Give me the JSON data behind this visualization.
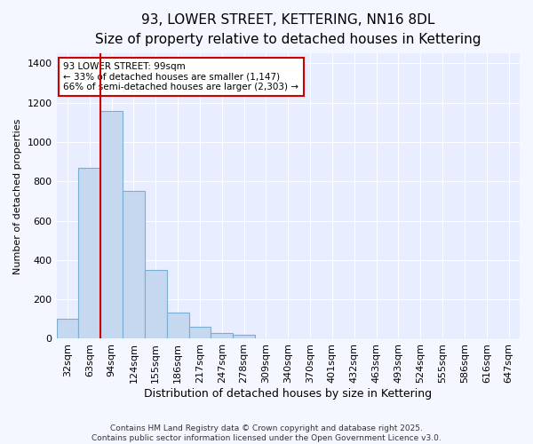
{
  "title": "93, LOWER STREET, KETTERING, NN16 8DL",
  "subtitle": "Size of property relative to detached houses in Kettering",
  "xlabel": "Distribution of detached houses by size in Kettering",
  "ylabel": "Number of detached properties",
  "categories": [
    "32sqm",
    "63sqm",
    "94sqm",
    "124sqm",
    "155sqm",
    "186sqm",
    "217sqm",
    "247sqm",
    "278sqm",
    "309sqm",
    "340sqm",
    "370sqm",
    "401sqm",
    "432sqm",
    "463sqm",
    "493sqm",
    "524sqm",
    "555sqm",
    "586sqm",
    "616sqm",
    "647sqm"
  ],
  "values": [
    100,
    870,
    1160,
    750,
    350,
    135,
    60,
    30,
    18,
    0,
    0,
    0,
    0,
    0,
    0,
    0,
    0,
    0,
    0,
    0,
    0
  ],
  "bar_color": "#c5d8f0",
  "bar_edgecolor": "#7aadd4",
  "bar_linewidth": 0.8,
  "vline_color": "#cc0000",
  "annotation_text": "93 LOWER STREET: 99sqm\n← 33% of detached houses are smaller (1,147)\n66% of semi-detached houses are larger (2,303) →",
  "annotation_box_color": "#cc0000",
  "ylim": [
    0,
    1450
  ],
  "yticks": [
    0,
    200,
    400,
    600,
    800,
    1000,
    1200,
    1400
  ],
  "background_color": "#f4f7ff",
  "plot_bg_color": "#e8eeff",
  "grid_color": "#ffffff",
  "footnote": "Contains HM Land Registry data © Crown copyright and database right 2025.\nContains public sector information licensed under the Open Government Licence v3.0.",
  "title_fontsize": 11,
  "subtitle_fontsize": 9.5,
  "xlabel_fontsize": 9,
  "ylabel_fontsize": 8,
  "tick_fontsize": 8,
  "footnote_fontsize": 6.5
}
